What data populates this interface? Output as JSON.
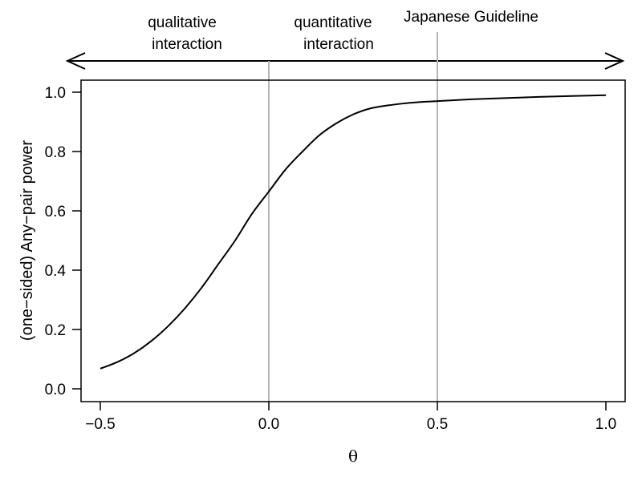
{
  "chart_data": {
    "type": "line",
    "xlabel": "θ",
    "ylabel": "(one−sided) Any−pair power",
    "xlim": [
      -0.5,
      1.0
    ],
    "ylim": [
      0.0,
      1.0
    ],
    "xticks": [
      "−0.5",
      "0.0",
      "0.5",
      "1.0"
    ],
    "yticks": [
      "0.0",
      "0.2",
      "0.4",
      "0.6",
      "0.8",
      "1.0"
    ],
    "grid": false,
    "reference_lines_x": [
      0.0,
      0.5
    ],
    "annotations": {
      "qualitative_line1": "qualitative",
      "qualitative_line2": "interaction",
      "quantitative_line1": "quantitative",
      "quantitative_line2": "interaction",
      "guideline": "Japanese Guideline"
    },
    "series": [
      {
        "x": [
          -0.5,
          -0.45,
          -0.4,
          -0.35,
          -0.3,
          -0.25,
          -0.2,
          -0.15,
          -0.1,
          -0.05,
          0.0,
          0.05,
          0.1,
          0.15,
          0.2,
          0.25,
          0.3,
          0.35,
          0.4,
          0.45,
          0.5,
          0.55,
          0.6,
          0.7,
          0.8,
          0.9,
          1.0
        ],
        "values": [
          0.068,
          0.09,
          0.12,
          0.16,
          0.21,
          0.27,
          0.34,
          0.42,
          0.5,
          0.59,
          0.665,
          0.74,
          0.8,
          0.855,
          0.895,
          0.925,
          0.945,
          0.955,
          0.962,
          0.967,
          0.97,
          0.973,
          0.976,
          0.98,
          0.984,
          0.987,
          0.99
        ]
      }
    ]
  }
}
